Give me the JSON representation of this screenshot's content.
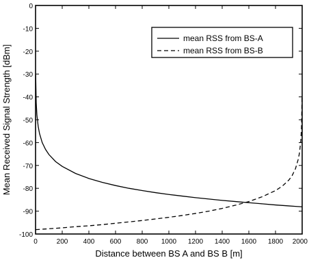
{
  "chart_data": {
    "type": "line",
    "title": "",
    "xlabel": "Distance between BS A and BS B [m]",
    "ylabel": "Mean Received Signal Strength [dBm]",
    "xlim": [
      0,
      2000
    ],
    "ylim": [
      -100,
      0
    ],
    "xticks": [
      0,
      200,
      400,
      600,
      800,
      1000,
      1200,
      1400,
      1600,
      1800,
      2000
    ],
    "yticks": [
      0,
      -10,
      -20,
      -30,
      -40,
      -50,
      -60,
      -70,
      -80,
      -90,
      -100
    ],
    "grid": false,
    "legend_position": "top-right",
    "series": [
      {
        "name": "mean RSS from BS-A",
        "style": "solid",
        "color": "#000000",
        "x": [
          1,
          5,
          10,
          20,
          30,
          50,
          75,
          100,
          150,
          200,
          300,
          400,
          500,
          600,
          700,
          800,
          900,
          1000,
          1100,
          1200,
          1300,
          1400,
          1500,
          1600,
          1700,
          1800,
          1900,
          1950,
          1999
        ],
        "y": [
          -30.3,
          -42.6,
          -47.8,
          -53.0,
          -56.1,
          -60.0,
          -63.0,
          -65.2,
          -68.3,
          -70.4,
          -73.5,
          -75.7,
          -77.4,
          -78.8,
          -80.0,
          -81.0,
          -81.9,
          -82.7,
          -83.4,
          -84.1,
          -84.7,
          -85.3,
          -85.8,
          -86.3,
          -86.8,
          -87.3,
          -87.7,
          -87.9,
          -88.1
        ]
      },
      {
        "name": "mean RSS from BS-B",
        "style": "dashed",
        "color": "#000000",
        "x": [
          1,
          50,
          100,
          200,
          300,
          400,
          500,
          600,
          700,
          800,
          900,
          1000,
          1100,
          1200,
          1300,
          1400,
          1500,
          1600,
          1700,
          1800,
          1850,
          1900,
          1925,
          1950,
          1970,
          1980,
          1990,
          1995,
          1999
        ],
        "y": [
          -98.1,
          -97.9,
          -97.7,
          -97.3,
          -96.8,
          -96.4,
          -95.9,
          -95.3,
          -94.7,
          -94.1,
          -93.4,
          -92.7,
          -91.9,
          -91.0,
          -90.0,
          -88.8,
          -87.4,
          -85.8,
          -83.7,
          -81.0,
          -79.1,
          -76.4,
          -74.4,
          -71.4,
          -67.4,
          -64.5,
          -59.1,
          -53.6,
          -40.0
        ]
      }
    ]
  }
}
